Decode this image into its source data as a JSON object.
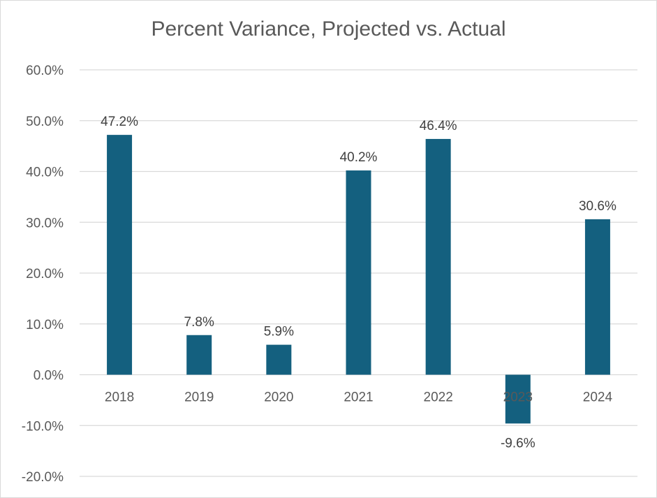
{
  "chart_data": {
    "type": "bar",
    "title": "Percent Variance, Projected vs. Actual",
    "xlabel": "",
    "ylabel": "",
    "categories": [
      "2018",
      "2019",
      "2020",
      "2021",
      "2022",
      "2023",
      "2024"
    ],
    "values": [
      47.2,
      7.8,
      5.9,
      40.2,
      46.4,
      -9.6,
      30.6
    ],
    "data_labels": [
      "47.2%",
      "7.8%",
      "5.9%",
      "40.2%",
      "46.4%",
      "-9.6%",
      "30.6%"
    ],
    "ylim": [
      -20,
      60
    ],
    "yticks": [
      60,
      50,
      40,
      30,
      20,
      10,
      0,
      -10,
      -20
    ],
    "ytick_labels": [
      "60.0%",
      "50.0%",
      "40.0%",
      "30.0%",
      "20.0%",
      "10.0%",
      "0.0%",
      "-10.0%",
      "-20.0%"
    ],
    "grid": true,
    "legend": "none",
    "bar_color": "#14607f",
    "grid_color": "#d9d9d9"
  }
}
